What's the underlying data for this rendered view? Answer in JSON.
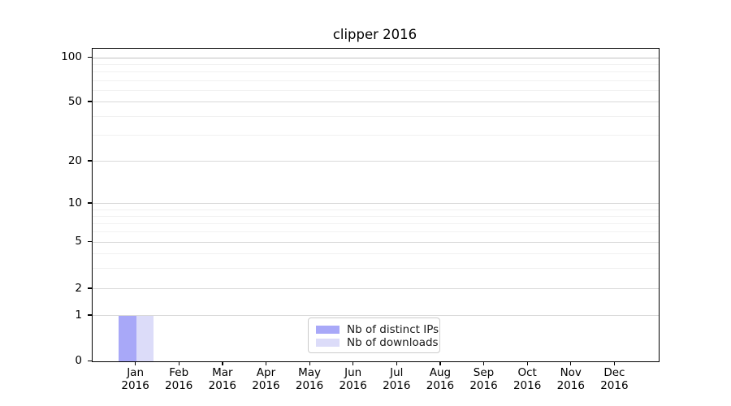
{
  "chart_data": {
    "type": "bar",
    "title": "clipper 2016",
    "x_ticklabels": [
      {
        "line1": "Jan",
        "line2": "2016"
      },
      {
        "line1": "Feb",
        "line2": "2016"
      },
      {
        "line1": "Mar",
        "line2": "2016"
      },
      {
        "line1": "Apr",
        "line2": "2016"
      },
      {
        "line1": "May",
        "line2": "2016"
      },
      {
        "line1": "Jun",
        "line2": "2016"
      },
      {
        "line1": "Jul",
        "line2": "2016"
      },
      {
        "line1": "Aug",
        "line2": "2016"
      },
      {
        "line1": "Sep",
        "line2": "2016"
      },
      {
        "line1": "Oct",
        "line2": "2016"
      },
      {
        "line1": "Nov",
        "line2": "2016"
      },
      {
        "line1": "Dec",
        "line2": "2016"
      }
    ],
    "series": [
      {
        "name": "Nb of distinct IPs",
        "color": "#a8a8f8",
        "values": [
          1,
          0,
          0,
          0,
          0,
          0,
          0,
          0,
          0,
          0,
          0,
          0
        ]
      },
      {
        "name": "Nb of downloads",
        "color": "#dcdcf9",
        "values": [
          1,
          0,
          0,
          0,
          0,
          0,
          0,
          0,
          0,
          0,
          0,
          0
        ]
      }
    ],
    "y_axis": {
      "scale": "symlog",
      "major_ticks": [
        0,
        1,
        2,
        5,
        10,
        20,
        50,
        100
      ],
      "minor_gridlines": [
        3,
        4,
        6,
        7,
        8,
        9,
        30,
        40,
        60,
        70,
        80,
        90
      ],
      "ylim": [
        0,
        112
      ]
    },
    "legend": {
      "position": "lower center",
      "entries": [
        "Nb of distinct IPs",
        "Nb of downloads"
      ]
    },
    "grid": "horizontal"
  }
}
